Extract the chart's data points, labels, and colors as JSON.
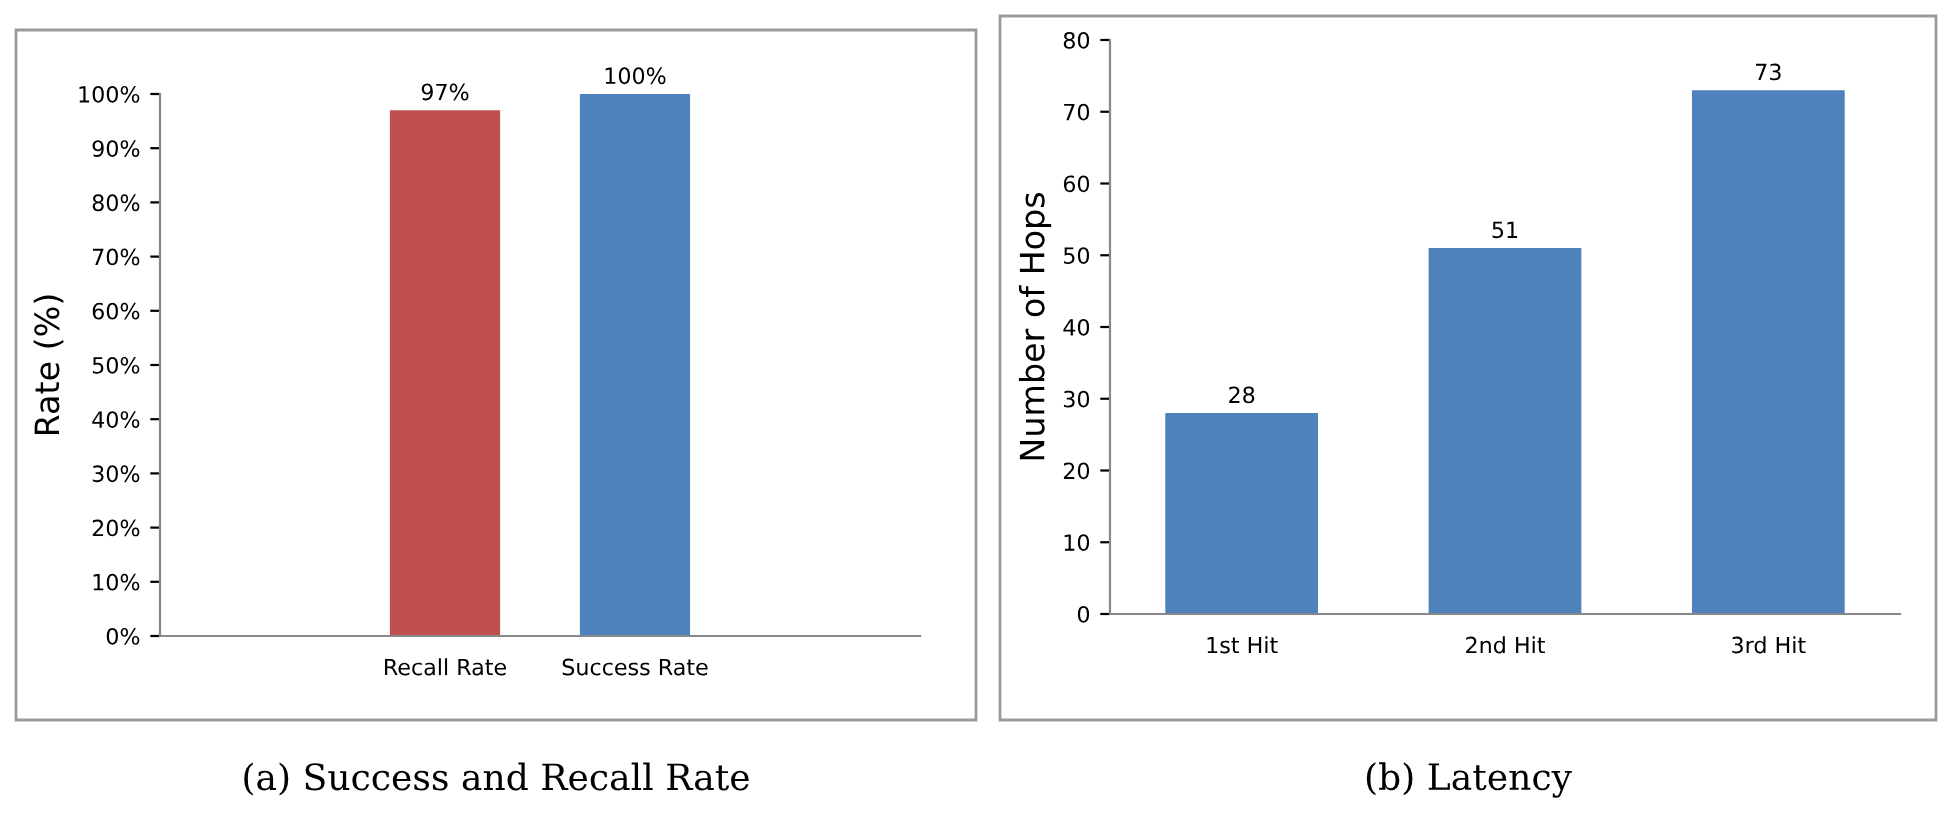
{
  "chart_data": [
    {
      "type": "bar",
      "title": "(a) Success and Recall Rate",
      "ylabel": "Rate (%)",
      "categories": [
        null,
        "Recall Rate",
        "Success Rate",
        null
      ],
      "series": [
        {
          "color": "#c0504d",
          "values": [
            null,
            97,
            null,
            null
          ],
          "value_labels": [
            null,
            "97%",
            null,
            null
          ]
        },
        {
          "color": "#4f81bd",
          "values": [
            null,
            null,
            100,
            null
          ],
          "value_labels": [
            null,
            null,
            "100%",
            null
          ]
        }
      ],
      "ylim": [
        0,
        100
      ],
      "yticks": [
        {
          "value": 0,
          "label": "0%"
        },
        {
          "value": 10,
          "label": "10%"
        },
        {
          "value": 20,
          "label": "20%"
        },
        {
          "value": 30,
          "label": "30%"
        },
        {
          "value": 40,
          "label": "40%"
        },
        {
          "value": 50,
          "label": "50%"
        },
        {
          "value": 60,
          "label": "60%"
        },
        {
          "value": 70,
          "label": "70%"
        },
        {
          "value": 80,
          "label": "80%"
        },
        {
          "value": 90,
          "label": "90%"
        },
        {
          "value": 100,
          "label": "100%"
        }
      ],
      "grid": false,
      "legend": false
    },
    {
      "type": "bar",
      "title": "(b) Latency",
      "ylabel": "Number of Hops",
      "categories": [
        "1st Hit",
        "2nd Hit",
        "3rd Hit"
      ],
      "values": [
        28,
        51,
        73
      ],
      "color": "#4f81bd",
      "data_labels": true,
      "ylim": [
        0,
        80
      ],
      "yticks": [
        0,
        10,
        20,
        30,
        40,
        50,
        60,
        70,
        80
      ],
      "grid": false,
      "legend": false
    }
  ]
}
